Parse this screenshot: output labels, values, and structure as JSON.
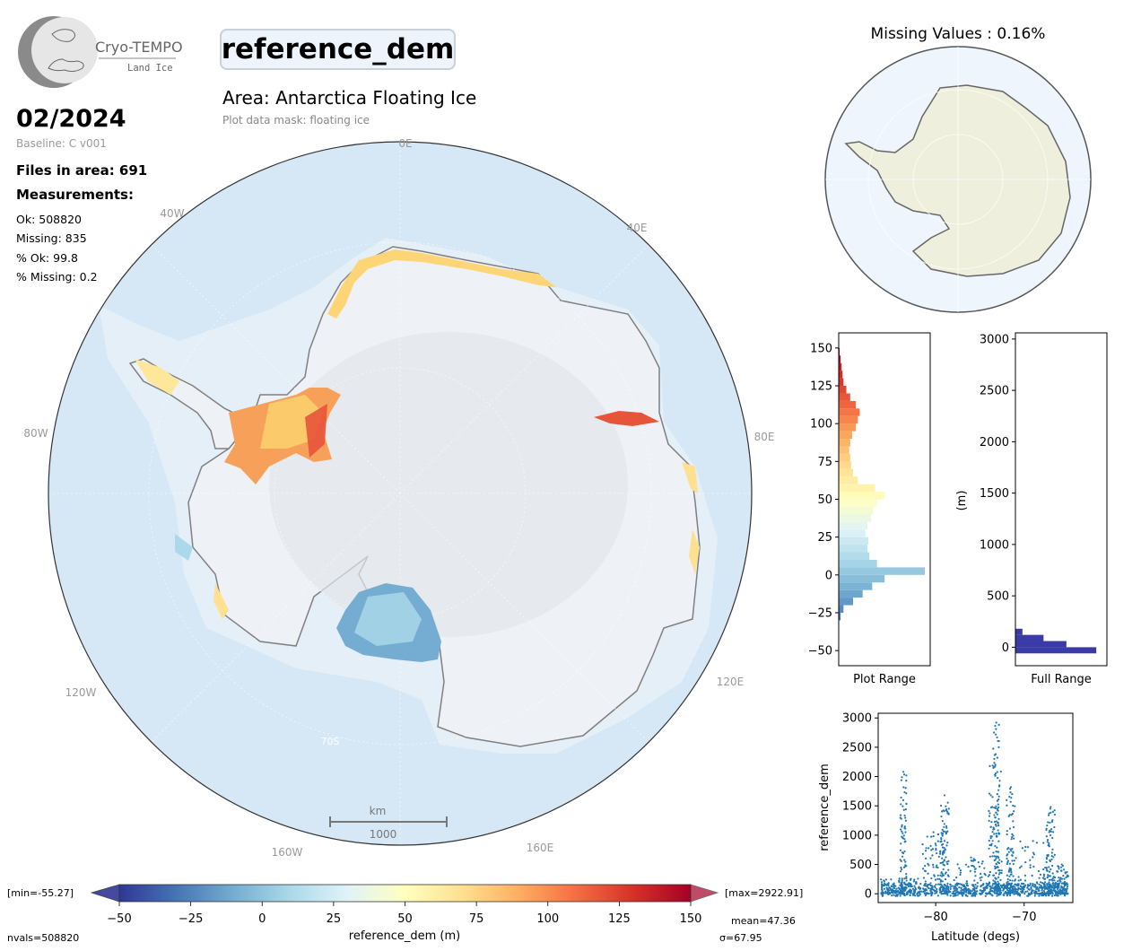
{
  "logo": {
    "title": "Cryo-TEMPO",
    "subtitle": "Land Ice"
  },
  "header": {
    "parameter": "reference_dem",
    "area_title": "Area: Antarctica Floating Ice",
    "mask_note": "Plot data mask: floating ice"
  },
  "info": {
    "date": "02/2024",
    "baseline": "Baseline: C v001",
    "files": "Files in area: 691",
    "measurements_label": "Measurements:",
    "ok": "Ok: 508820",
    "missing": "Missing: 835",
    "pct_ok": "% Ok: 99.8",
    "pct_missing": "% Missing: 0.2"
  },
  "map": {
    "lon_labels": [
      "0E",
      "40E",
      "80E",
      "120E",
      "160E",
      "160W",
      "120W",
      "80W",
      "40W"
    ],
    "lat_label": "70S",
    "scalebar_unit": "km",
    "scalebar_value": "1000",
    "colors": {
      "ocean": "#d6e7f5",
      "ice": "#eef2f6",
      "coast": "#808080"
    }
  },
  "inset": {
    "title": "Missing Values : 0.16%",
    "colors": {
      "ocean": "#eef5fd",
      "land": "#efefdd"
    }
  },
  "colorbar": {
    "label": "reference_dem (m)",
    "ticks": [
      -50,
      -25,
      0,
      25,
      50,
      75,
      100,
      125,
      150
    ],
    "min_label": "[min=-55.27]",
    "max_label": "[max=2922.91]",
    "nvals": "nvals=508820",
    "mean": "mean=47.36",
    "sigma": "σ=67.95",
    "vmin": -50,
    "vmax": 150,
    "colors": [
      "#313695",
      "#4575b4",
      "#74add1",
      "#abd9e9",
      "#e0f3f8",
      "#ffffbf",
      "#fee090",
      "#fdae61",
      "#f46d43",
      "#d73027",
      "#a50026"
    ]
  },
  "chart_data": [
    {
      "type": "bar",
      "orientation": "horizontal",
      "xlabel": "Plot Range",
      "ylabel": "",
      "ylim": [
        -60,
        160
      ],
      "yticks": [
        -50,
        -25,
        0,
        25,
        50,
        75,
        100,
        125,
        150
      ],
      "bins": [
        -30,
        -25,
        -20,
        -15,
        -10,
        -5,
        0,
        5,
        10,
        15,
        20,
        25,
        30,
        35,
        40,
        45,
        50,
        55,
        60,
        65,
        70,
        75,
        80,
        85,
        90,
        95,
        100,
        105,
        110,
        115,
        120,
        125,
        130,
        135,
        140,
        145
      ],
      "values": [
        2,
        5,
        15,
        25,
        35,
        48,
        90,
        40,
        32,
        30,
        31,
        28,
        30,
        34,
        36,
        40,
        48,
        38,
        20,
        15,
        13,
        12,
        11,
        12,
        14,
        18,
        20,
        22,
        18,
        12,
        8,
        5,
        4,
        3,
        2,
        1
      ]
    },
    {
      "type": "bar",
      "orientation": "horizontal",
      "xlabel": "Full Range",
      "ylabel": "(m)",
      "ylim": [
        -180,
        3060
      ],
      "yticks": [
        0,
        500,
        1000,
        1500,
        2000,
        2500,
        3000
      ],
      "bins": [
        -60,
        0,
        60,
        120
      ],
      "values": [
        0.92,
        0.58,
        0.32,
        0.08
      ]
    },
    {
      "type": "scatter",
      "xlabel": "Latitude (degs)",
      "ylabel": "reference_dem",
      "xlim": [
        -86.5,
        -64.5
      ],
      "ylim": [
        -150,
        3080
      ],
      "xticks": [
        -80,
        -70
      ],
      "yticks": [
        0,
        500,
        1000,
        1500,
        2000,
        2500,
        3000
      ],
      "clusters": [
        {
          "x": [
            -86.2,
            -82.0
          ],
          "ymax": 260
        },
        {
          "x": [
            -84.0,
            -83.3
          ],
          "ymax": 2080
        },
        {
          "x": [
            -81.5,
            -79.0
          ],
          "ymax": 1050
        },
        {
          "x": [
            -79.5,
            -78.5
          ],
          "ymax": 1680
        },
        {
          "x": [
            -78.0,
            -74.0
          ],
          "ymax": 620
        },
        {
          "x": [
            -74.0,
            -72.5
          ],
          "ymax": 2200
        },
        {
          "x": [
            -73.5,
            -72.8
          ],
          "ymax": 2920
        },
        {
          "x": [
            -72.0,
            -71.0
          ],
          "ymax": 1820
        },
        {
          "x": [
            -71.0,
            -67.0
          ],
          "ymax": 900
        },
        {
          "x": [
            -67.5,
            -66.5
          ],
          "ymax": 1480
        },
        {
          "x": [
            -66.5,
            -65.0
          ],
          "ymax": 500
        }
      ]
    }
  ]
}
